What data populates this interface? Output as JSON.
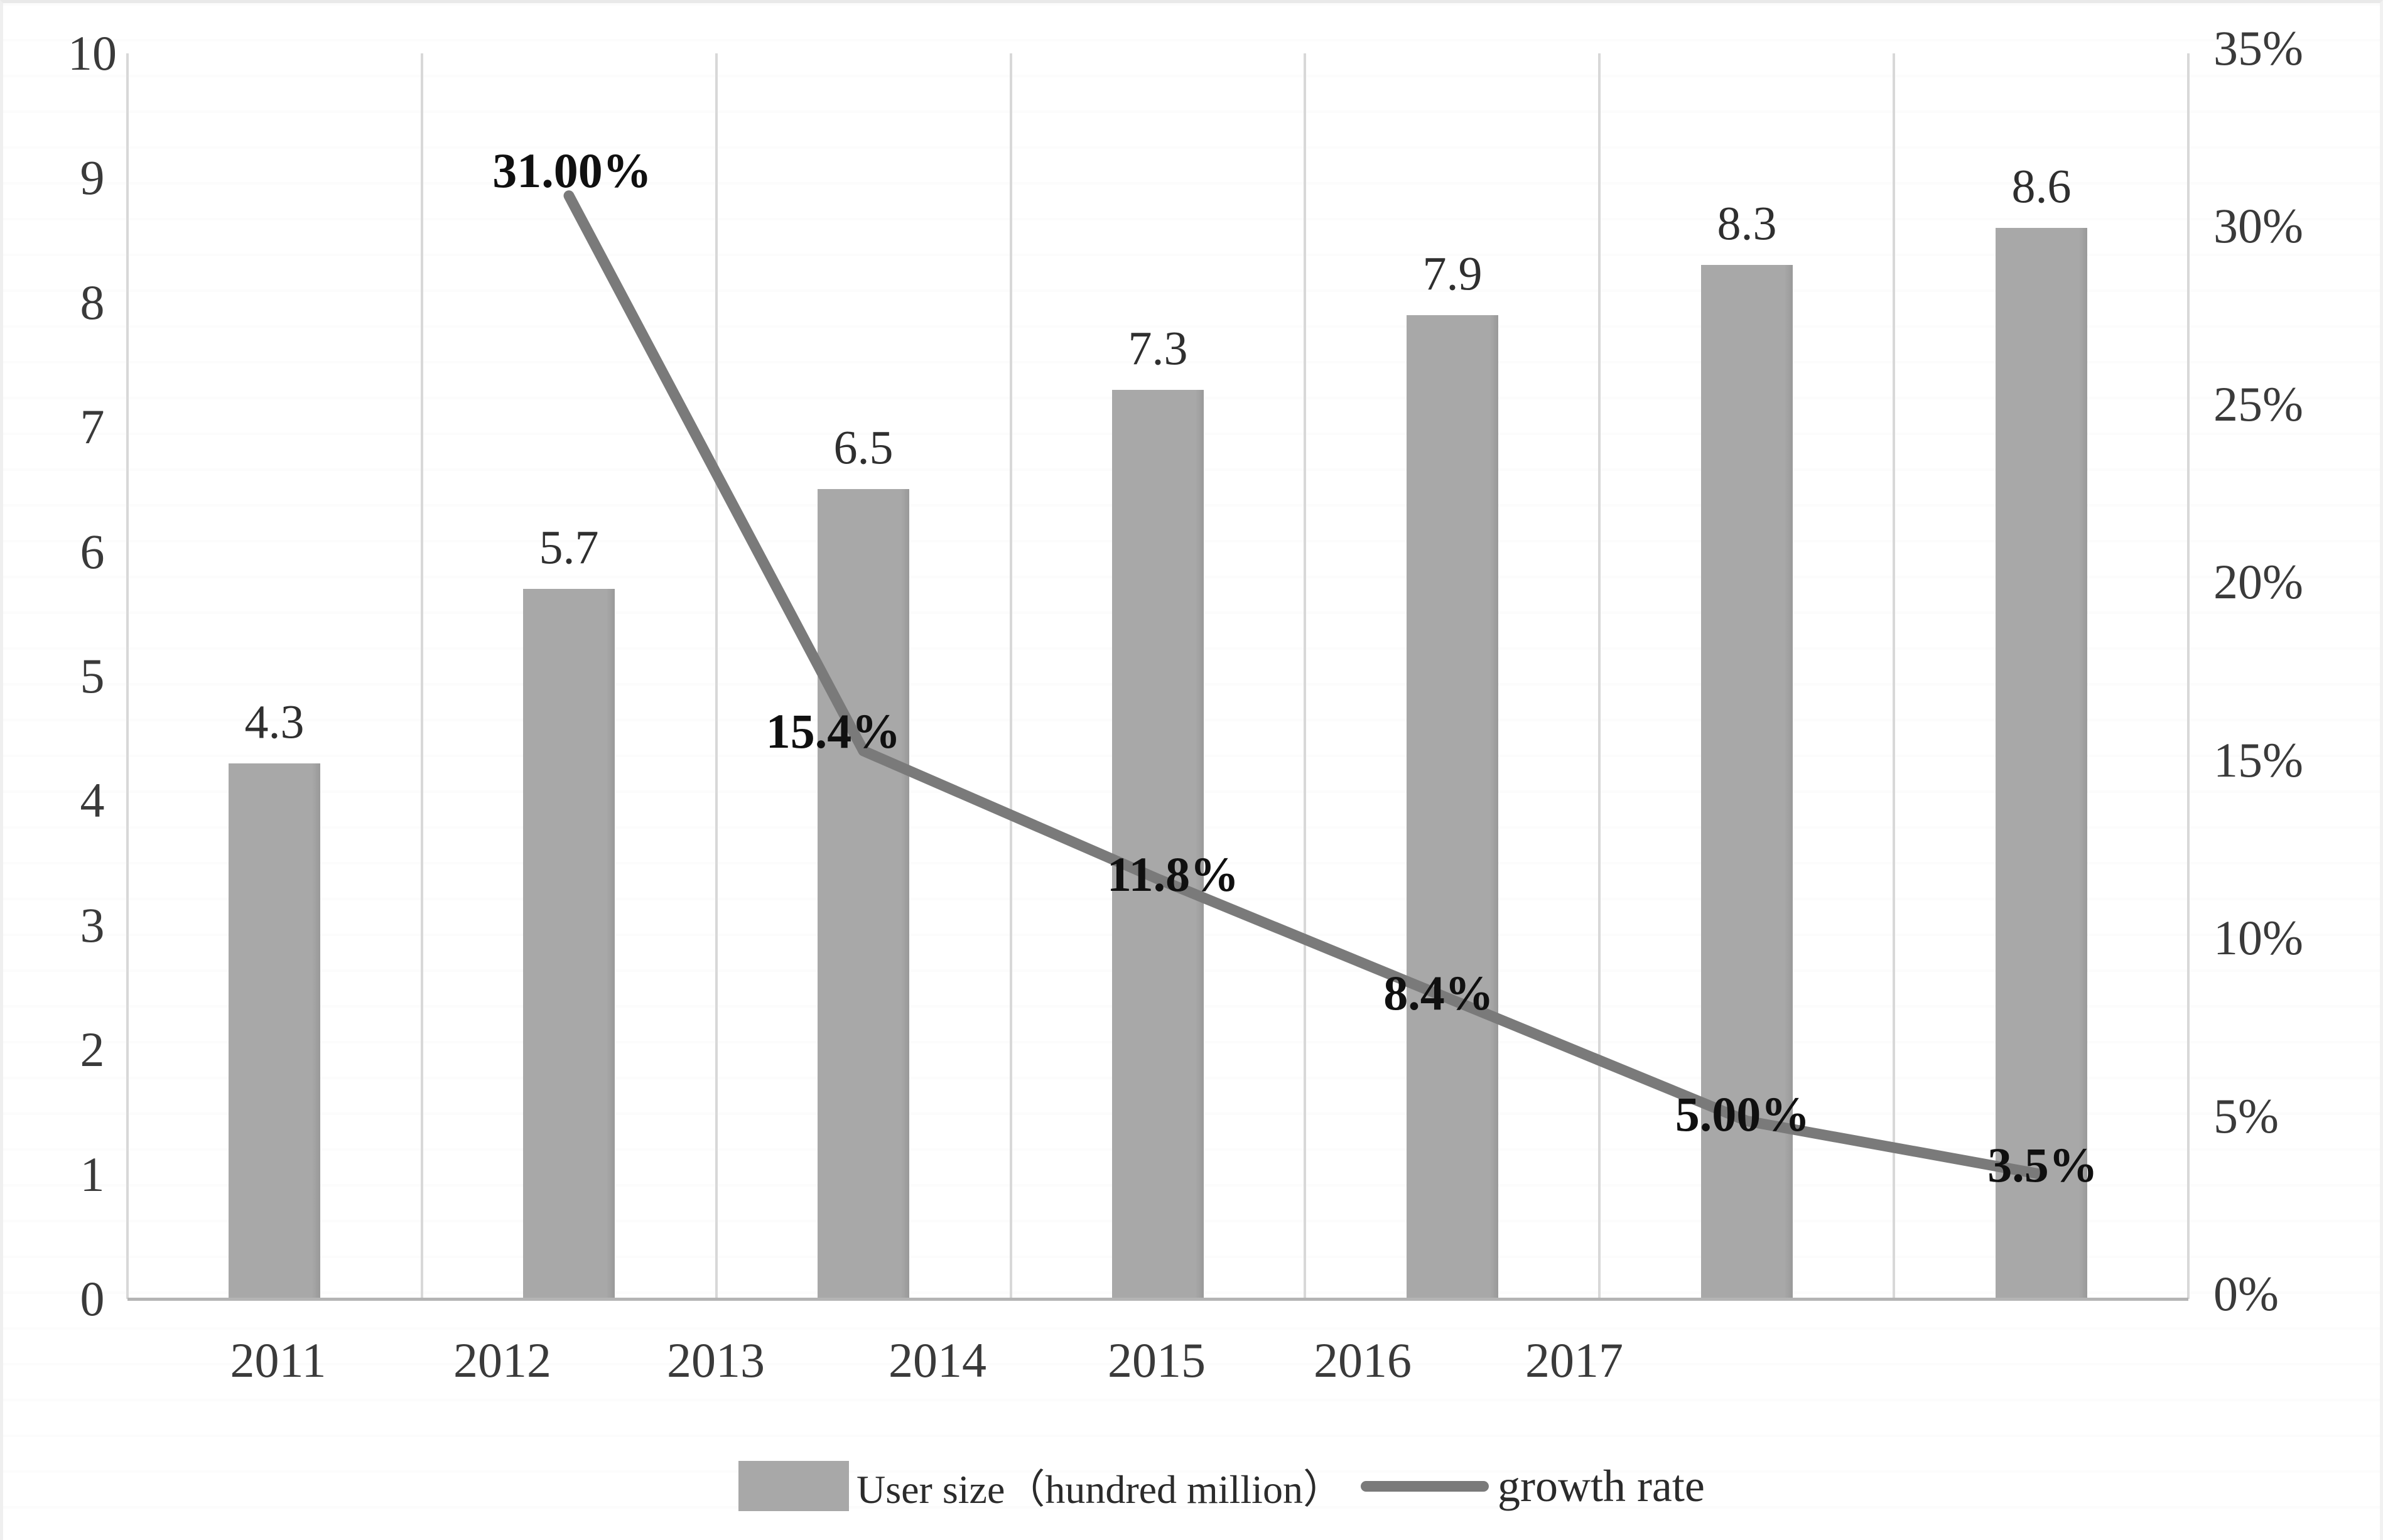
{
  "chart_data": {
    "type": "bar+line",
    "title": "",
    "categories": [
      "2011",
      "2012",
      "2013",
      "2014",
      "2015",
      "2016",
      "2017"
    ],
    "series": [
      {
        "name": "User size（hundred million）",
        "type": "bar",
        "axis": "left",
        "values": [
          4.3,
          5.7,
          6.5,
          7.3,
          7.9,
          8.3,
          8.6
        ],
        "data_labels": [
          "4.3",
          "5.7",
          "6.5",
          "7.3",
          "7.9",
          "8.3",
          "8.6"
        ],
        "color": "#a8a8a8"
      },
      {
        "name": "growth rate",
        "type": "line",
        "axis": "right",
        "values": [
          null,
          31.0,
          15.4,
          11.8,
          8.4,
          5.0,
          3.5
        ],
        "data_labels": [
          null,
          "31.00%",
          "15.4%",
          "11.8%",
          "8.4%",
          "5.00%",
          "3.5%"
        ],
        "color": "#7a7a7a"
      }
    ],
    "left_axis": {
      "min": 0,
      "max": 10,
      "step": 1,
      "ticks": [
        "0",
        "1",
        "2",
        "3",
        "4",
        "5",
        "6",
        "7",
        "8",
        "9",
        "10"
      ]
    },
    "right_axis": {
      "min_pct": 0,
      "max_pct": 35,
      "step_pct": 5,
      "ticks": [
        "0%",
        "5%",
        "10%",
        "15%",
        "20%",
        "25%",
        "30%",
        "35%"
      ]
    },
    "grid": {
      "vertical": true,
      "horizontal": false,
      "grid_color": "#d8d8d8",
      "axis_line_color": "#b4b4b4"
    },
    "legend_position": "bottom"
  },
  "legend": {
    "user_size": "User size（hundred million）",
    "growth_rate": "growth rate"
  }
}
